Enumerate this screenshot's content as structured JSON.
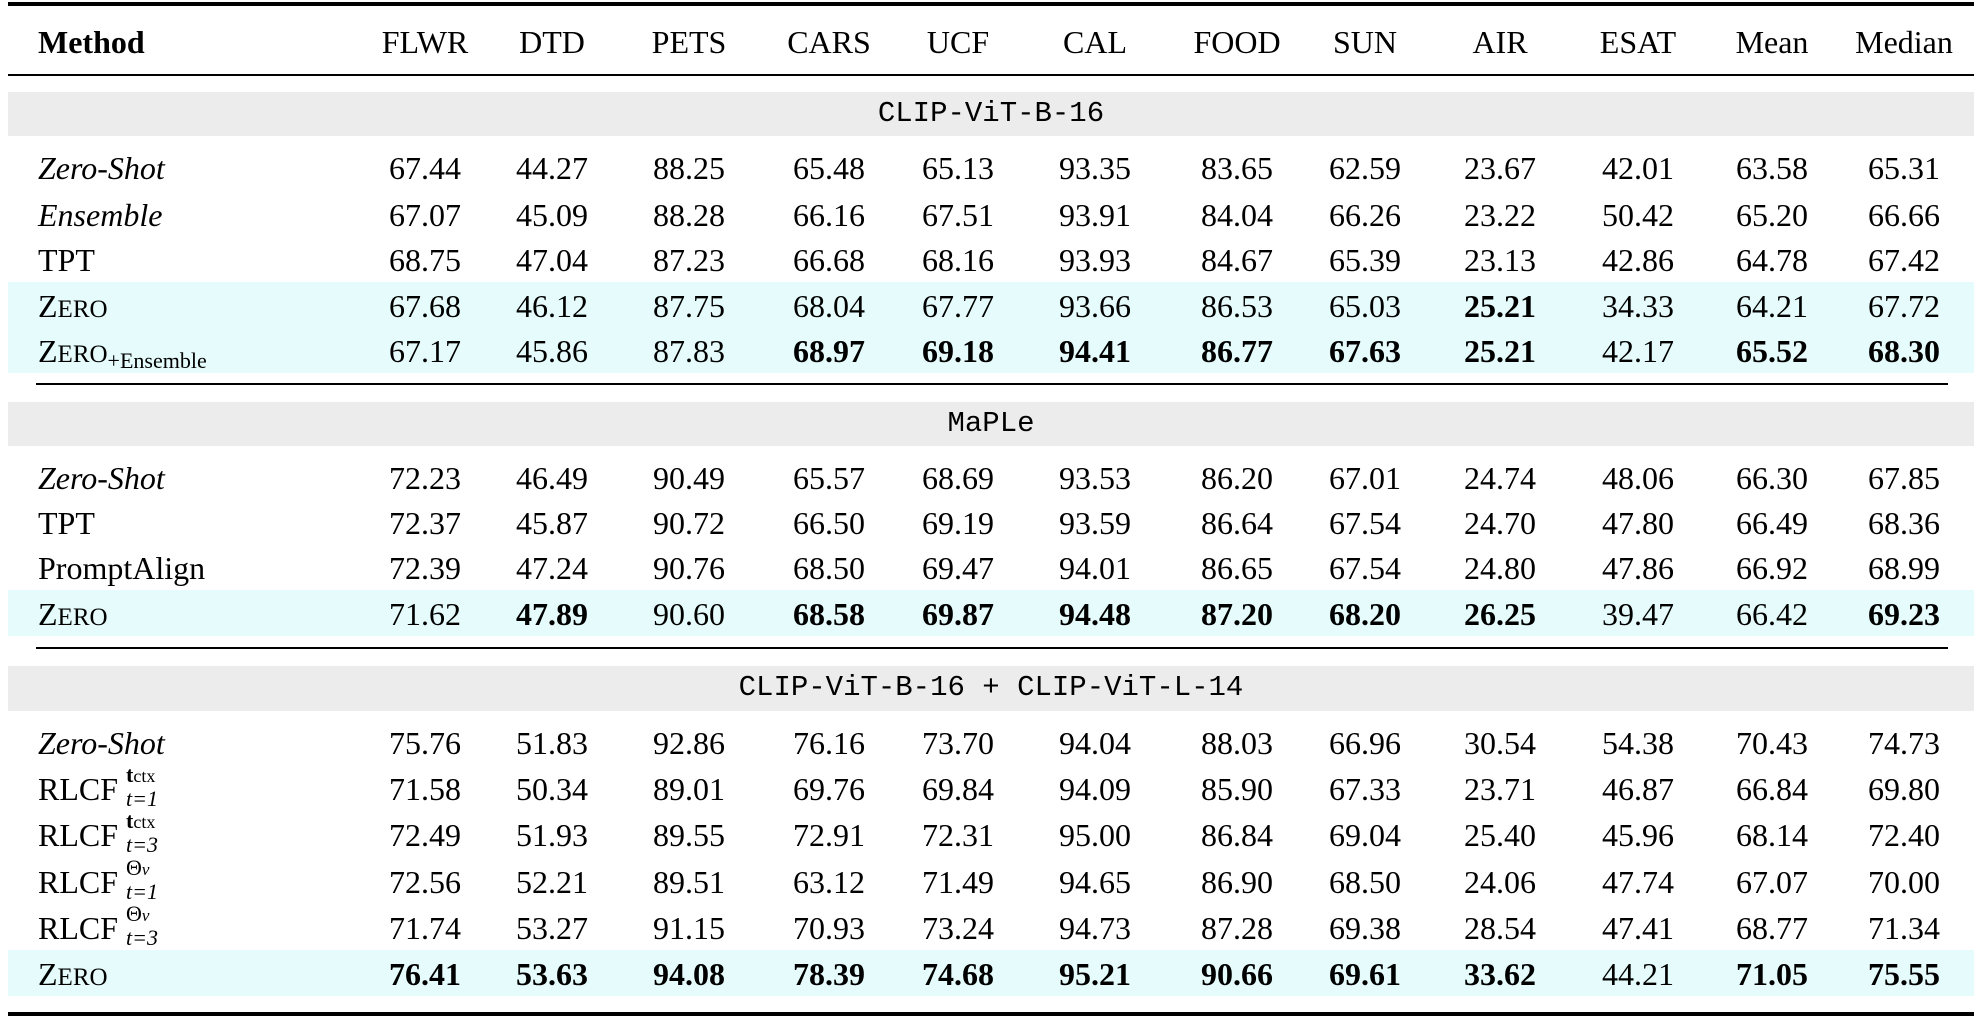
{
  "columns": [
    "Method",
    "FLWR",
    "DTD",
    "PETS",
    "CARS",
    "UCF",
    "CAL",
    "FOOD",
    "SUN",
    "AIR",
    "ESAT",
    "Mean",
    "Median"
  ],
  "sections": [
    {
      "title": "CLIP-ViT-B-16",
      "rows": [
        {
          "method": "Zero-Shot",
          "style": "italic",
          "values": [
            "67.44",
            "44.27",
            "88.25",
            "65.48",
            "65.13",
            "93.35",
            "83.65",
            "62.59",
            "23.67",
            "42.01",
            "63.58",
            "65.31"
          ],
          "bold": [],
          "highlight": false
        },
        {
          "method": "Ensemble",
          "style": "italic",
          "values": [
            "67.07",
            "45.09",
            "88.28",
            "66.16",
            "67.51",
            "93.91",
            "84.04",
            "66.26",
            "23.22",
            "50.42",
            "65.20",
            "66.66"
          ],
          "bold": [],
          "highlight": false
        },
        {
          "method": "TPT",
          "style": "plain",
          "values": [
            "68.75",
            "47.04",
            "87.23",
            "66.68",
            "68.16",
            "93.93",
            "84.67",
            "65.39",
            "23.13",
            "42.86",
            "64.78",
            "67.42"
          ],
          "bold": [],
          "highlight": false
        },
        {
          "method": "Zero",
          "style": "smallcaps",
          "values": [
            "67.68",
            "46.12",
            "87.75",
            "68.04",
            "67.77",
            "93.66",
            "86.53",
            "65.03",
            "25.21",
            "34.33",
            "64.21",
            "67.72"
          ],
          "bold": [
            8
          ],
          "highlight": true
        },
        {
          "method": "Zero",
          "suffix": "+Ensemble",
          "style": "smallcaps",
          "values": [
            "67.17",
            "45.86",
            "87.83",
            "68.97",
            "69.18",
            "94.41",
            "86.77",
            "67.63",
            "25.21",
            "42.17",
            "65.52",
            "68.30"
          ],
          "bold": [
            3,
            4,
            5,
            6,
            7,
            8,
            10,
            11
          ],
          "highlight": true
        }
      ]
    },
    {
      "title": "MaPLe",
      "rows": [
        {
          "method": "Zero-Shot",
          "style": "italic",
          "values": [
            "72.23",
            "46.49",
            "90.49",
            "65.57",
            "68.69",
            "93.53",
            "86.20",
            "67.01",
            "24.74",
            "48.06",
            "66.30",
            "67.85"
          ],
          "bold": [],
          "highlight": false
        },
        {
          "method": "TPT",
          "style": "plain",
          "values": [
            "72.37",
            "45.87",
            "90.72",
            "66.50",
            "69.19",
            "93.59",
            "86.64",
            "67.54",
            "24.70",
            "47.80",
            "66.49",
            "68.36"
          ],
          "bold": [],
          "highlight": false
        },
        {
          "method": "PromptAlign",
          "style": "plain",
          "values": [
            "72.39",
            "47.24",
            "90.76",
            "68.50",
            "69.47",
            "94.01",
            "86.65",
            "67.54",
            "24.80",
            "47.86",
            "66.92",
            "68.99"
          ],
          "bold": [],
          "highlight": false
        },
        {
          "method": "Zero",
          "style": "smallcaps",
          "values": [
            "71.62",
            "47.89",
            "90.60",
            "68.58",
            "69.87",
            "94.48",
            "87.20",
            "68.20",
            "26.25",
            "39.47",
            "66.42",
            "69.23"
          ],
          "bold": [
            1,
            3,
            4,
            5,
            6,
            7,
            8,
            11
          ],
          "highlight": true
        }
      ]
    },
    {
      "title": "CLIP-ViT-B-16 + CLIP-ViT-L-14",
      "rows": [
        {
          "method": "Zero-Shot",
          "style": "italic",
          "values": [
            "75.76",
            "51.83",
            "92.86",
            "76.16",
            "73.70",
            "94.04",
            "88.03",
            "66.96",
            "30.54",
            "54.38",
            "70.43",
            "74.73"
          ],
          "bold": [],
          "highlight": false
        },
        {
          "method": "RLCF",
          "sup": "tctx",
          "sub": "t=1",
          "style": "rlcf",
          "values": [
            "71.58",
            "50.34",
            "89.01",
            "69.76",
            "69.84",
            "94.09",
            "85.90",
            "67.33",
            "23.71",
            "46.87",
            "66.84",
            "69.80"
          ],
          "bold": [],
          "highlight": false
        },
        {
          "method": "RLCF",
          "sup": "tctx",
          "sub": "t=3",
          "style": "rlcf",
          "values": [
            "72.49",
            "51.93",
            "89.55",
            "72.91",
            "72.31",
            "95.00",
            "86.84",
            "69.04",
            "25.40",
            "45.96",
            "68.14",
            "72.40"
          ],
          "bold": [],
          "highlight": false
        },
        {
          "method": "RLCF",
          "sup": "Θv",
          "sub": "t=1",
          "style": "rlcf",
          "values": [
            "72.56",
            "52.21",
            "89.51",
            "63.12",
            "71.49",
            "94.65",
            "86.90",
            "68.50",
            "24.06",
            "47.74",
            "67.07",
            "70.00"
          ],
          "bold": [],
          "highlight": false
        },
        {
          "method": "RLCF",
          "sup": "Θv",
          "sub": "t=3",
          "style": "rlcf",
          "values": [
            "71.74",
            "53.27",
            "91.15",
            "70.93",
            "73.24",
            "94.73",
            "87.28",
            "69.38",
            "28.54",
            "47.41",
            "68.77",
            "71.34"
          ],
          "bold": [],
          "highlight": false
        },
        {
          "method": "Zero",
          "style": "smallcaps",
          "values": [
            "76.41",
            "53.63",
            "94.08",
            "78.39",
            "74.68",
            "95.21",
            "90.66",
            "69.61",
            "33.62",
            "44.21",
            "71.05",
            "75.55"
          ],
          "bold": [
            0,
            1,
            2,
            3,
            4,
            5,
            6,
            7,
            8,
            10,
            11
          ],
          "highlight": true
        }
      ]
    }
  ]
}
